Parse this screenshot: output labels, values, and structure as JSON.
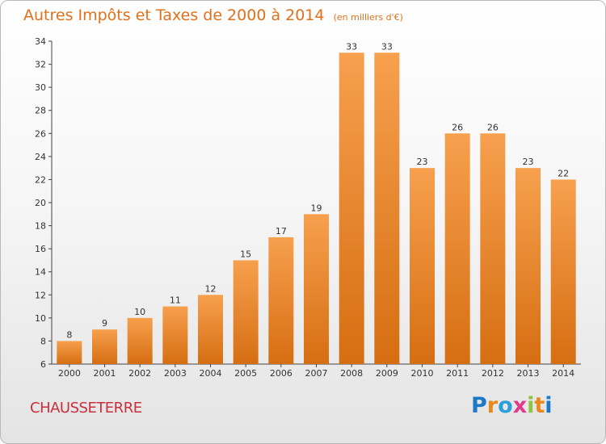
{
  "header": {
    "title": "Autres Impôts et Taxes de 2000 à 2014",
    "unit": "(en milliers d'€)"
  },
  "footer": {
    "commune": "CHAUSSETERRE",
    "logo_text": "Proxiti",
    "logo_letters": [
      {
        "ch": "P",
        "color": "#1e78c8"
      },
      {
        "ch": "r",
        "color": "#e8891a"
      },
      {
        "ch": "o",
        "color": "#2aa0d8"
      },
      {
        "ch": "x",
        "color": "#e23a8a"
      },
      {
        "ch": "i",
        "color": "#8cc63f"
      },
      {
        "ch": "t",
        "color": "#e8891a"
      },
      {
        "ch": "i",
        "color": "#1e78c8"
      }
    ]
  },
  "colors": {
    "bar_top": "#f7a04e",
    "bar_bottom": "#d66e12",
    "title": "#e0701a",
    "commune": "#c8303e"
  },
  "chart_data": {
    "type": "bar",
    "title": "Autres Impôts et Taxes de 2000 à 2014",
    "subtitle": "(en milliers d'€)",
    "xlabel": "",
    "ylabel": "",
    "categories": [
      "2000",
      "2001",
      "2002",
      "2003",
      "2004",
      "2005",
      "2006",
      "2007",
      "2008",
      "2009",
      "2010",
      "2011",
      "2012",
      "2013",
      "2014"
    ],
    "values": [
      8,
      9,
      10,
      11,
      12,
      15,
      17,
      19,
      33,
      33,
      23,
      26,
      26,
      23,
      22
    ],
    "ylim": [
      6,
      34
    ],
    "yticks": [
      6,
      8,
      10,
      12,
      14,
      16,
      18,
      20,
      22,
      24,
      26,
      28,
      30,
      32,
      34
    ],
    "grid": false,
    "data_labels": true
  }
}
